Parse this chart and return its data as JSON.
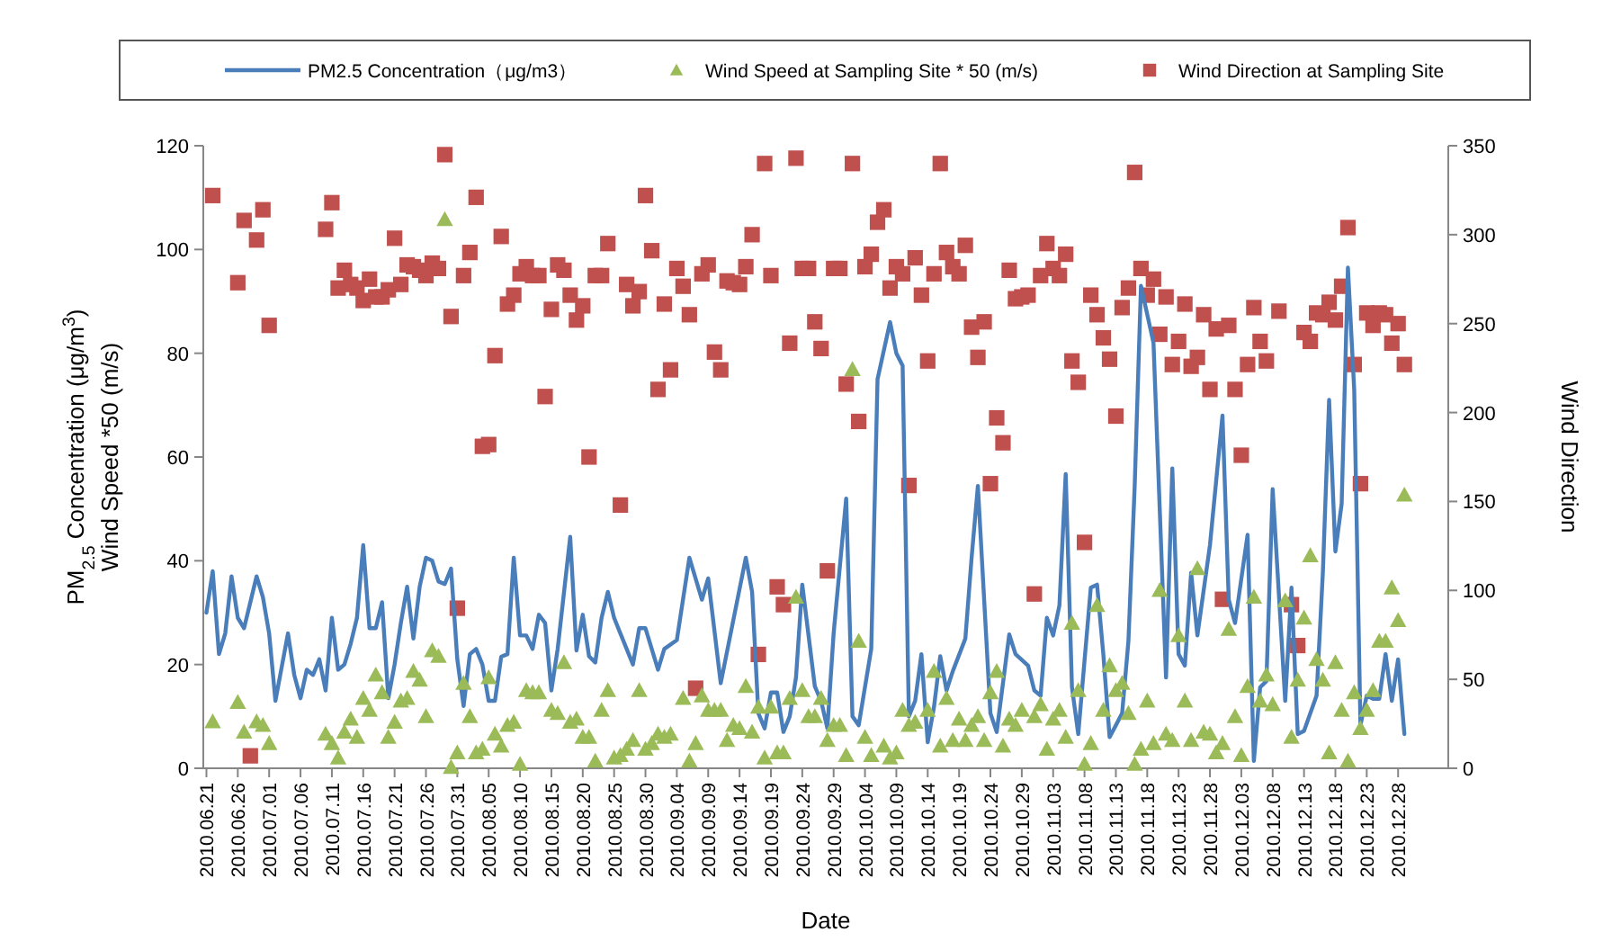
{
  "chart_data": {
    "type": "line",
    "xlabel": "Date",
    "ylabel": "PM$_{2.5}$ Concentration (μg/m$^{3}$)\nWind Speed *50 (m/s)",
    "y2label": "Wind Direction",
    "legend": "top",
    "grid": false,
    "xlim": [
      "2010-06-20T12:00",
      "2011-01-05"
    ],
    "xticks": [
      {
        "value": "2010-06-21",
        "label": "2010.06.21"
      },
      {
        "value": "2010-06-26",
        "label": "2010.06.26"
      },
      {
        "value": "2010-07-01",
        "label": "2010.07.01"
      },
      {
        "value": "2010-07-06",
        "label": "2010.07.06"
      },
      {
        "value": "2010-07-11",
        "label": "2010.07.11"
      },
      {
        "value": "2010-07-16",
        "label": "2010.07.16"
      },
      {
        "value": "2010-07-21",
        "label": "2010.07.21"
      },
      {
        "value": "2010-07-26",
        "label": "2010.07.26"
      },
      {
        "value": "2010-07-31",
        "label": "2010.07.31"
      },
      {
        "value": "2010-08-05",
        "label": "2010.08.05"
      },
      {
        "value": "2010-08-10",
        "label": "2010.08.10"
      },
      {
        "value": "2010-08-15",
        "label": "2010.08.15"
      },
      {
        "value": "2010-08-20",
        "label": "2010.08.20"
      },
      {
        "value": "2010-08-25",
        "label": "2010.08.25"
      },
      {
        "value": "2010-08-30",
        "label": "2010.08.30"
      },
      {
        "value": "2010-09-04",
        "label": "2010.09.04"
      },
      {
        "value": "2010-09-09",
        "label": "2010.09.09"
      },
      {
        "value": "2010-09-14",
        "label": "2010.09.14"
      },
      {
        "value": "2010-09-19",
        "label": "2010.09.19"
      },
      {
        "value": "2010-09-24",
        "label": "2010.09.24"
      },
      {
        "value": "2010-09-29",
        "label": "2010.09.29"
      },
      {
        "value": "2010-10-04",
        "label": "2010.10.04"
      },
      {
        "value": "2010-10-09",
        "label": "2010.10.09"
      },
      {
        "value": "2010-10-14",
        "label": "2010.10.14"
      },
      {
        "value": "2010-10-19",
        "label": "2010.10.19"
      },
      {
        "value": "2010-10-24",
        "label": "2010.10.24"
      },
      {
        "value": "2010-10-29",
        "label": "2010.10.29"
      },
      {
        "value": "2010-11-03",
        "label": "2010.11.03"
      },
      {
        "value": "2010-11-08",
        "label": "2010.11.08"
      },
      {
        "value": "2010-11-13",
        "label": "2010.11.13"
      },
      {
        "value": "2010-11-18",
        "label": "2010.11.18"
      },
      {
        "value": "2010-11-23",
        "label": "2010.11.23"
      },
      {
        "value": "2010-11-28",
        "label": "2010.11.28"
      },
      {
        "value": "2010-12-03",
        "label": "2010.12.03"
      },
      {
        "value": "2010-12-08",
        "label": "2010.12.08"
      },
      {
        "value": "2010-12-13",
        "label": "2010.12.13"
      },
      {
        "value": "2010-12-18",
        "label": "2010.12.18"
      },
      {
        "value": "2010-12-23",
        "label": "2010.12.23"
      },
      {
        "value": "2010-12-28",
        "label": "2010.12.28"
      }
    ],
    "ylim": [
      0,
      120
    ],
    "yticks": [
      0,
      20,
      40,
      60,
      80,
      100,
      120
    ],
    "y2lim": [
      0,
      350
    ],
    "y2ticks": [
      0,
      50,
      100,
      150,
      200,
      250,
      300,
      350
    ],
    "series": [
      {
        "name": "PM2.5 Concentration（μg/m3）",
        "marker": "none",
        "line_style": "solid",
        "color": "#4a7ebb",
        "x": [
          "2010-06-21",
          "2010-06-22",
          "2010-06-23",
          "2010-06-24",
          "2010-06-25",
          "2010-06-26",
          "2010-06-27",
          "2010-06-29",
          "2010-06-30",
          "2010-07-01",
          "2010-07-02",
          "2010-07-04",
          "2010-07-05",
          "2010-07-06",
          "2010-07-07",
          "2010-07-08",
          "2010-07-09",
          "2010-07-10",
          "2010-07-11",
          "2010-07-12",
          "2010-07-13",
          "2010-07-14",
          "2010-07-15",
          "2010-07-16",
          "2010-07-17",
          "2010-07-18",
          "2010-07-19",
          "2010-07-20",
          "2010-07-21",
          "2010-07-22",
          "2010-07-23",
          "2010-07-24",
          "2010-07-25",
          "2010-07-26",
          "2010-07-27",
          "2010-07-28",
          "2010-07-29",
          "2010-07-30",
          "2010-07-31",
          "2010-08-01",
          "2010-08-02",
          "2010-08-03",
          "2010-08-04",
          "2010-08-05",
          "2010-08-06",
          "2010-08-07",
          "2010-08-08",
          "2010-08-09",
          "2010-08-10",
          "2010-08-11",
          "2010-08-12",
          "2010-08-13",
          "2010-08-14",
          "2010-08-15",
          "2010-08-16",
          "2010-08-18",
          "2010-08-19",
          "2010-08-20",
          "2010-08-21",
          "2010-08-22",
          "2010-08-23",
          "2010-08-24",
          "2010-08-25",
          "2010-08-26",
          "2010-08-28",
          "2010-08-29",
          "2010-08-30",
          "2010-09-01",
          "2010-09-02",
          "2010-09-04",
          "2010-09-06",
          "2010-09-08",
          "2010-09-09",
          "2010-09-11",
          "2010-09-15",
          "2010-09-16",
          "2010-09-17",
          "2010-09-18",
          "2010-09-19",
          "2010-09-20",
          "2010-09-21",
          "2010-09-22",
          "2010-09-23",
          "2010-09-24",
          "2010-09-26",
          "2010-09-27",
          "2010-09-28",
          "2010-09-29",
          "2010-10-01",
          "2010-10-02",
          "2010-10-03",
          "2010-10-05",
          "2010-10-06",
          "2010-10-08",
          "2010-10-09",
          "2010-10-10",
          "2010-10-11",
          "2010-10-12",
          "2010-10-13",
          "2010-10-14",
          "2010-10-15",
          "2010-10-16",
          "2010-10-17",
          "2010-10-18",
          "2010-10-20",
          "2010-10-21",
          "2010-10-22",
          "2010-10-24",
          "2010-10-25",
          "2010-10-27",
          "2010-10-28",
          "2010-10-30",
          "2010-10-31",
          "2010-11-01",
          "2010-11-02",
          "2010-11-03",
          "2010-11-04",
          "2010-11-05",
          "2010-11-06",
          "2010-11-07",
          "2010-11-09",
          "2010-11-10",
          "2010-11-11",
          "2010-11-12",
          "2010-11-14",
          "2010-11-15",
          "2010-11-16",
          "2010-11-17",
          "2010-11-19",
          "2010-11-21",
          "2010-11-22",
          "2010-11-23",
          "2010-11-24",
          "2010-11-25",
          "2010-11-26",
          "2010-11-28",
          "2010-11-30",
          "2010-12-01",
          "2010-12-02",
          "2010-12-04",
          "2010-12-05",
          "2010-12-06",
          "2010-12-07",
          "2010-12-08",
          "2010-12-10",
          "2010-12-11",
          "2010-12-12",
          "2010-12-13",
          "2010-12-15",
          "2010-12-16",
          "2010-12-17",
          "2010-12-18",
          "2010-12-19",
          "2010-12-20",
          "2010-12-21",
          "2010-12-22",
          "2010-12-23",
          "2010-12-24",
          "2010-12-25",
          "2010-12-26",
          "2010-12-27",
          "2010-12-28",
          "2010-12-29"
        ],
        "values": [
          30,
          38,
          22,
          26,
          37,
          29,
          27,
          37,
          33,
          26,
          13,
          26,
          18,
          13.5,
          19,
          18,
          21,
          15,
          29,
          19,
          20,
          24,
          29,
          43,
          27,
          27,
          32,
          13.5,
          20,
          28,
          35,
          25,
          35,
          40.6,
          40,
          36,
          35.5,
          38.5,
          21,
          12,
          22,
          23,
          20,
          13,
          13,
          21.5,
          22,
          40.6,
          25.6,
          25.6,
          23,
          29.6,
          28,
          15,
          23,
          44.6,
          22.7,
          29.6,
          21.6,
          20.4,
          29,
          34,
          29,
          26,
          20,
          27,
          27,
          19,
          23,
          24.7,
          40.6,
          32.5,
          36.6,
          16.4,
          40.6,
          34,
          10.6,
          7.7,
          14.6,
          14.6,
          7,
          10,
          17.5,
          35.4,
          15.8,
          13,
          7.7,
          26,
          52,
          10,
          8.3,
          23,
          75,
          86,
          80,
          77.6,
          10,
          13,
          22,
          5,
          11.8,
          21.6,
          15,
          18.7,
          25,
          40.6,
          54.4,
          10.6,
          7,
          25.8,
          22,
          19.8,
          15,
          14,
          29,
          25.6,
          31.4,
          56.7,
          15.6,
          6.6,
          34.8,
          35.4,
          22,
          6,
          10.6,
          24.5,
          54.4,
          93,
          82,
          17.5,
          57.8,
          22,
          19.8,
          37.7,
          25.6,
          43,
          68,
          32.5,
          28,
          45,
          1.4,
          15.6,
          16.8,
          53.8,
          13,
          34.8,
          6.6,
          7.2,
          14,
          37.7,
          71,
          41.8,
          51,
          96.5,
          73,
          8.3,
          14,
          13.4,
          13.4,
          22,
          13,
          21,
          6.6
        ]
      },
      {
        "name": "Wind Speed at Sampling Site * 50 (m/s)",
        "type": "scatter",
        "marker": "triangle",
        "color": "#9bbb59",
        "x": [
          "2010-06-22",
          "2010-06-26",
          "2010-06-27",
          "2010-06-29",
          "2010-06-30",
          "2010-07-01",
          "2010-07-10",
          "2010-07-11",
          "2010-07-12",
          "2010-07-13",
          "2010-07-14",
          "2010-07-15",
          "2010-07-16",
          "2010-07-17",
          "2010-07-18",
          "2010-07-19",
          "2010-07-20",
          "2010-07-21",
          "2010-07-22",
          "2010-07-23",
          "2010-07-24",
          "2010-07-25",
          "2010-07-26",
          "2010-07-27",
          "2010-07-28",
          "2010-07-29",
          "2010-07-30",
          "2010-07-31",
          "2010-08-01",
          "2010-08-02",
          "2010-08-03",
          "2010-08-04",
          "2010-08-05",
          "2010-08-06",
          "2010-08-07",
          "2010-08-08",
          "2010-08-09",
          "2010-08-10",
          "2010-08-11",
          "2010-08-12",
          "2010-08-13",
          "2010-08-15",
          "2010-08-16",
          "2010-08-17",
          "2010-08-18",
          "2010-08-19",
          "2010-08-20",
          "2010-08-21",
          "2010-08-22",
          "2010-08-23",
          "2010-08-24",
          "2010-08-25",
          "2010-08-26",
          "2010-08-27",
          "2010-08-28",
          "2010-08-29",
          "2010-08-30",
          "2010-08-31",
          "2010-09-01",
          "2010-09-02",
          "2010-09-03",
          "2010-09-05",
          "2010-09-06",
          "2010-09-07",
          "2010-09-08",
          "2010-09-09",
          "2010-09-10",
          "2010-09-11",
          "2010-09-12",
          "2010-09-13",
          "2010-09-14",
          "2010-09-15",
          "2010-09-16",
          "2010-09-17",
          "2010-09-18",
          "2010-09-19",
          "2010-09-20",
          "2010-09-21",
          "2010-09-22",
          "2010-09-23",
          "2010-09-24",
          "2010-09-25",
          "2010-09-26",
          "2010-09-27",
          "2010-09-28",
          "2010-09-29",
          "2010-09-30",
          "2010-10-01",
          "2010-10-02",
          "2010-10-03",
          "2010-10-04",
          "2010-10-05",
          "2010-10-07",
          "2010-10-08",
          "2010-10-09",
          "2010-10-10",
          "2010-10-11",
          "2010-10-12",
          "2010-10-14",
          "2010-10-15",
          "2010-10-16",
          "2010-10-17",
          "2010-10-18",
          "2010-10-19",
          "2010-10-20",
          "2010-10-21",
          "2010-10-22",
          "2010-10-23",
          "2010-10-24",
          "2010-10-25",
          "2010-10-26",
          "2010-10-27",
          "2010-10-28",
          "2010-10-29",
          "2010-10-31",
          "2010-11-01",
          "2010-11-02",
          "2010-11-03",
          "2010-11-04",
          "2010-11-05",
          "2010-11-06",
          "2010-11-07",
          "2010-11-08",
          "2010-11-09",
          "2010-11-10",
          "2010-11-11",
          "2010-11-12",
          "2010-11-13",
          "2010-11-14",
          "2010-11-15",
          "2010-11-16",
          "2010-11-17",
          "2010-11-18",
          "2010-11-19",
          "2010-11-20",
          "2010-11-21",
          "2010-11-22",
          "2010-11-23",
          "2010-11-24",
          "2010-11-25",
          "2010-11-26",
          "2010-11-27",
          "2010-11-28",
          "2010-11-29",
          "2010-11-30",
          "2010-12-01",
          "2010-12-02",
          "2010-12-03",
          "2010-12-04",
          "2010-12-05",
          "2010-12-06",
          "2010-12-07",
          "2010-12-08",
          "2010-12-10",
          "2010-12-11",
          "2010-12-12",
          "2010-12-13",
          "2010-12-14",
          "2010-12-15",
          "2010-12-16",
          "2010-12-17",
          "2010-12-18",
          "2010-12-19",
          "2010-12-20",
          "2010-12-21",
          "2010-12-22",
          "2010-12-23",
          "2010-12-24",
          "2010-12-25",
          "2010-12-26",
          "2010-12-27",
          "2010-12-28",
          "2010-12-29"
        ],
        "values": [
          9,
          12.7,
          7,
          9,
          8.3,
          4.8,
          6.6,
          4.8,
          2,
          7,
          9.5,
          6,
          13.5,
          11.2,
          18,
          14.6,
          6,
          8.9,
          13,
          13.5,
          18.7,
          17,
          10,
          22.7,
          21.6,
          105.8,
          0.2,
          3,
          16.4,
          10,
          3,
          3.7,
          17.5,
          6.6,
          4.3,
          8.3,
          8.9,
          0.8,
          15,
          14.6,
          14.6,
          11.2,
          10.6,
          20.4,
          8.9,
          9.5,
          6,
          6,
          1.4,
          11.2,
          15,
          2,
          2.5,
          3.7,
          5.4,
          15,
          3.7,
          4.8,
          6.6,
          6,
          6.6,
          13.5,
          1.4,
          4.8,
          14,
          11.2,
          11.2,
          11.2,
          5.4,
          8.3,
          7.7,
          15.8,
          7,
          11.8,
          2,
          11.8,
          3,
          3,
          13.5,
          33,
          15,
          10,
          10,
          13.5,
          5.4,
          8.3,
          8.3,
          2.5,
          76.9,
          24.5,
          6,
          2.5,
          4.3,
          2,
          3,
          11.2,
          8.3,
          8.9,
          11.2,
          18.7,
          4.3,
          13.5,
          5.4,
          9.5,
          5.4,
          8.3,
          10,
          5.4,
          14.6,
          18.7,
          4.3,
          9.5,
          8.3,
          11.2,
          10,
          12.3,
          3.7,
          9.5,
          11.2,
          6,
          28,
          15,
          0.8,
          4.8,
          31.4,
          11.2,
          19.8,
          15,
          16.4,
          10.6,
          0.8,
          3.7,
          13,
          4.8,
          34.3,
          6.6,
          5.4,
          25.6,
          13,
          5.4,
          38.5,
          7,
          6.6,
          3,
          4.8,
          26.8,
          10,
          2.5,
          15.8,
          33,
          13,
          18,
          12.3,
          32.3,
          6,
          17,
          29,
          41,
          21,
          17,
          3,
          20.4,
          11.2,
          1.4,
          14.6,
          7.7,
          11.2,
          15,
          24.5,
          24.5,
          34.8,
          28.5,
          52.7
        ]
      },
      {
        "name": "Wind Direction at Sampling Site",
        "type": "scatter",
        "marker": "square",
        "axis": "y2",
        "color": "#c0504d",
        "x": [
          "2010-06-22",
          "2010-06-26",
          "2010-06-27",
          "2010-06-28",
          "2010-06-29",
          "2010-06-30",
          "2010-07-01",
          "2010-07-10",
          "2010-07-11",
          "2010-07-12",
          "2010-07-13",
          "2010-07-14",
          "2010-07-15",
          "2010-07-16",
          "2010-07-17",
          "2010-07-18",
          "2010-07-19",
          "2010-07-20",
          "2010-07-21",
          "2010-07-22",
          "2010-07-23",
          "2010-07-24",
          "2010-07-25",
          "2010-07-26",
          "2010-07-27",
          "2010-07-28",
          "2010-07-29",
          "2010-07-30",
          "2010-07-31",
          "2010-08-01",
          "2010-08-02",
          "2010-08-03",
          "2010-08-04",
          "2010-08-05",
          "2010-08-06",
          "2010-08-07",
          "2010-08-08",
          "2010-08-09",
          "2010-08-10",
          "2010-08-11",
          "2010-08-12",
          "2010-08-13",
          "2010-08-14",
          "2010-08-15",
          "2010-08-16",
          "2010-08-17",
          "2010-08-18",
          "2010-08-19",
          "2010-08-20",
          "2010-08-21",
          "2010-08-22",
          "2010-08-23",
          "2010-08-24",
          "2010-08-26",
          "2010-08-27",
          "2010-08-28",
          "2010-08-29",
          "2010-08-30",
          "2010-08-31",
          "2010-09-01",
          "2010-09-02",
          "2010-09-03",
          "2010-09-04",
          "2010-09-05",
          "2010-09-06",
          "2010-09-07",
          "2010-09-08",
          "2010-09-09",
          "2010-09-10",
          "2010-09-11",
          "2010-09-12",
          "2010-09-13",
          "2010-09-14",
          "2010-09-15",
          "2010-09-16",
          "2010-09-17",
          "2010-09-18",
          "2010-09-19",
          "2010-09-20",
          "2010-09-21",
          "2010-09-22",
          "2010-09-23",
          "2010-09-24",
          "2010-09-25",
          "2010-09-26",
          "2010-09-27",
          "2010-09-28",
          "2010-09-29",
          "2010-09-30",
          "2010-10-01",
          "2010-10-02",
          "2010-10-03",
          "2010-10-04",
          "2010-10-05",
          "2010-10-06",
          "2010-10-07",
          "2010-10-08",
          "2010-10-09",
          "2010-10-10",
          "2010-10-11",
          "2010-10-12",
          "2010-10-13",
          "2010-10-14",
          "2010-10-15",
          "2010-10-16",
          "2010-10-17",
          "2010-10-18",
          "2010-10-19",
          "2010-10-20",
          "2010-10-21",
          "2010-10-22",
          "2010-10-23",
          "2010-10-24",
          "2010-10-25",
          "2010-10-26",
          "2010-10-27",
          "2010-10-28",
          "2010-10-29",
          "2010-10-30",
          "2010-10-31",
          "2010-11-01",
          "2010-11-02",
          "2010-11-03",
          "2010-11-04",
          "2010-11-05",
          "2010-11-06",
          "2010-11-07",
          "2010-11-08",
          "2010-11-09",
          "2010-11-10",
          "2010-11-11",
          "2010-11-12",
          "2010-11-13",
          "2010-11-14",
          "2010-11-15",
          "2010-11-16",
          "2010-11-17",
          "2010-11-18",
          "2010-11-19",
          "2010-11-20",
          "2010-11-21",
          "2010-11-22",
          "2010-11-23",
          "2010-11-24",
          "2010-11-25",
          "2010-11-26",
          "2010-11-27",
          "2010-11-28",
          "2010-11-29",
          "2010-11-30",
          "2010-12-01",
          "2010-12-02",
          "2010-12-03",
          "2010-12-04",
          "2010-12-05",
          "2010-12-06",
          "2010-12-07",
          "2010-12-09",
          "2010-12-11",
          "2010-12-12",
          "2010-12-13",
          "2010-12-14",
          "2010-12-15",
          "2010-12-16",
          "2010-12-17",
          "2010-12-18",
          "2010-12-19",
          "2010-12-20",
          "2010-12-21",
          "2010-12-22",
          "2010-12-23",
          "2010-12-24",
          "2010-12-25",
          "2010-12-26",
          "2010-12-27",
          "2010-12-28",
          "2010-12-29"
        ],
        "values": [
          322,
          273,
          308,
          7,
          297,
          314,
          249,
          303,
          318,
          270,
          280,
          272,
          270,
          263,
          275,
          265,
          265,
          269,
          298,
          272,
          283,
          282,
          280,
          277,
          284,
          281,
          345,
          254,
          90,
          277,
          290,
          321,
          181,
          182,
          232,
          299,
          261,
          266,
          278,
          282,
          277,
          277,
          209,
          258,
          283,
          280,
          266,
          252,
          260,
          175,
          277,
          277,
          295,
          148,
          272,
          260,
          268,
          322,
          291,
          213,
          261,
          224,
          281,
          271,
          255,
          45,
          278,
          283,
          234,
          224,
          274,
          273,
          272,
          282,
          300,
          64,
          340,
          277,
          102,
          92,
          239,
          343,
          281,
          281,
          251,
          236,
          111,
          281,
          281,
          216,
          340,
          195,
          282,
          289,
          307,
          314,
          270,
          282,
          278,
          159,
          287,
          266,
          229,
          278,
          340,
          290,
          282,
          278,
          294,
          248,
          231,
          251,
          160,
          197,
          183,
          280,
          264,
          265,
          266,
          98,
          277,
          295,
          281,
          277,
          289,
          229,
          217,
          127,
          266,
          255,
          242,
          230,
          198,
          259,
          270,
          335,
          281,
          266,
          275,
          244,
          265,
          227,
          240,
          261,
          226,
          231,
          255,
          213,
          247,
          95,
          249,
          213,
          176,
          227,
          259,
          240,
          229,
          257,
          92,
          69,
          245,
          240,
          256,
          255,
          262,
          252,
          271,
          304,
          227,
          160,
          256,
          249,
          256,
          255,
          239,
          250,
          227
        ]
      }
    ]
  }
}
